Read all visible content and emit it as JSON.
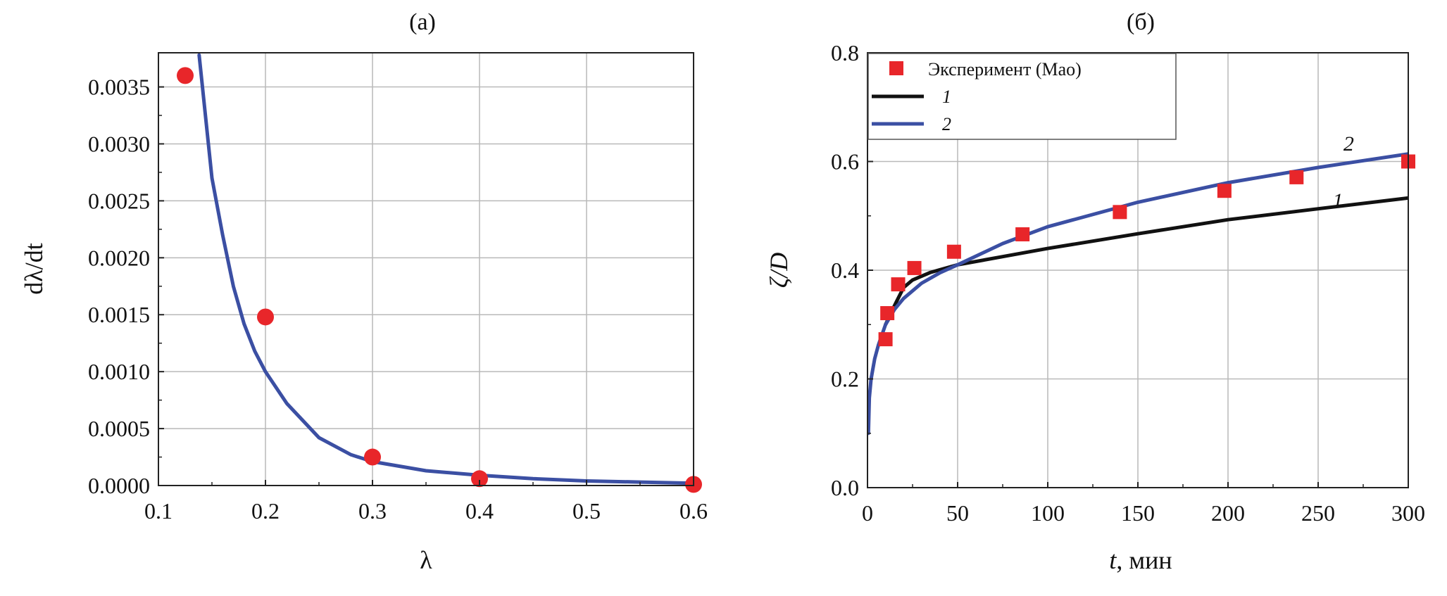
{
  "chart_data": [
    {
      "type": "scatter",
      "title": "(а)",
      "xlabel": "λ",
      "ylabel": "dλ/dt",
      "xlim": [
        0.1,
        0.6
      ],
      "ylim": [
        0.0,
        0.0038
      ],
      "x_ticks": [
        {
          "value": 0.1,
          "label": "0.1"
        },
        {
          "value": 0.2,
          "label": "0.2"
        },
        {
          "value": 0.3,
          "label": "0.3"
        },
        {
          "value": 0.4,
          "label": "0.4"
        },
        {
          "value": 0.5,
          "label": "0.5"
        },
        {
          "value": 0.6,
          "label": "0.6"
        }
      ],
      "y_ticks": [
        {
          "value": 0.0,
          "label": "0.0000"
        },
        {
          "value": 0.0005,
          "label": "0.0005"
        },
        {
          "value": 0.001,
          "label": "0.0010"
        },
        {
          "value": 0.0015,
          "label": "0.0015"
        },
        {
          "value": 0.002,
          "label": "0.0020"
        },
        {
          "value": 0.0025,
          "label": "0.0025"
        },
        {
          "value": 0.003,
          "label": "0.0030"
        },
        {
          "value": 0.0035,
          "label": "0.0035"
        }
      ],
      "grid": true,
      "series": [
        {
          "kind": "points",
          "marker": "circle",
          "color": "#e8262a",
          "x": [
            0.125,
            0.2,
            0.3,
            0.4,
            0.6
          ],
          "y": [
            0.0036,
            0.00148,
            0.00025,
            6e-05,
            1e-05
          ]
        },
        {
          "kind": "line",
          "color": "#3b4fa3",
          "x": [
            0.138,
            0.15,
            0.16,
            0.17,
            0.18,
            0.19,
            0.2,
            0.22,
            0.25,
            0.28,
            0.3,
            0.35,
            0.4,
            0.45,
            0.5,
            0.55,
            0.6
          ],
          "y": [
            0.00378,
            0.0027,
            0.0022,
            0.00175,
            0.00142,
            0.00118,
            0.001,
            0.00072,
            0.00042,
            0.00027,
            0.00021,
            0.00013,
            9e-05,
            6e-05,
            4e-05,
            3e-05,
            2e-05
          ]
        }
      ]
    },
    {
      "type": "scatter",
      "title": "(б)",
      "xlabel_italic": "t",
      "xlabel_rest": ", мин",
      "ylabel": "ζ/D",
      "xlim": [
        0,
        300
      ],
      "ylim": [
        0.0,
        0.8
      ],
      "x_ticks": [
        {
          "value": 0,
          "label": "0"
        },
        {
          "value": 50,
          "label": "50"
        },
        {
          "value": 100,
          "label": "100"
        },
        {
          "value": 150,
          "label": "150"
        },
        {
          "value": 200,
          "label": "200"
        },
        {
          "value": 250,
          "label": "250"
        },
        {
          "value": 300,
          "label": "300"
        }
      ],
      "y_ticks": [
        {
          "value": 0.0,
          "label": "0.0"
        },
        {
          "value": 0.2,
          "label": "0.2"
        },
        {
          "value": 0.4,
          "label": "0.4"
        },
        {
          "value": 0.6,
          "label": "0.6"
        },
        {
          "value": 0.8,
          "label": "0.8"
        }
      ],
      "grid": true,
      "legend_position": "top-left",
      "series": [
        {
          "kind": "points",
          "marker": "square",
          "name": "Эксперимент (Мао)",
          "color": "#e8262a",
          "x": [
            10,
            11,
            17,
            26,
            48,
            86,
            140,
            198,
            238,
            300
          ],
          "y": [
            0.273,
            0.321,
            0.374,
            0.404,
            0.434,
            0.466,
            0.507,
            0.546,
            0.571,
            0.6
          ]
        },
        {
          "kind": "line",
          "name": "1",
          "color": "#111111",
          "label_pos": {
            "x": 258,
            "y": 0.515
          },
          "x": [
            10,
            15,
            20,
            25,
            35,
            50,
            75,
            100,
            150,
            200,
            250,
            300
          ],
          "y": [
            0.3,
            0.335,
            0.368,
            0.382,
            0.396,
            0.41,
            0.425,
            0.44,
            0.467,
            0.493,
            0.513,
            0.533
          ]
        },
        {
          "kind": "line",
          "name": "2",
          "color": "#3b4fa3",
          "label_pos": {
            "x": 264,
            "y": 0.62
          },
          "x": [
            0.5,
            1,
            2,
            4,
            6,
            10,
            15,
            20,
            30,
            40,
            50,
            75,
            100,
            150,
            200,
            250,
            300
          ],
          "y": [
            0.1,
            0.165,
            0.2,
            0.237,
            0.262,
            0.3,
            0.328,
            0.348,
            0.376,
            0.395,
            0.41,
            0.449,
            0.48,
            0.525,
            0.561,
            0.589,
            0.614
          ]
        }
      ]
    }
  ]
}
